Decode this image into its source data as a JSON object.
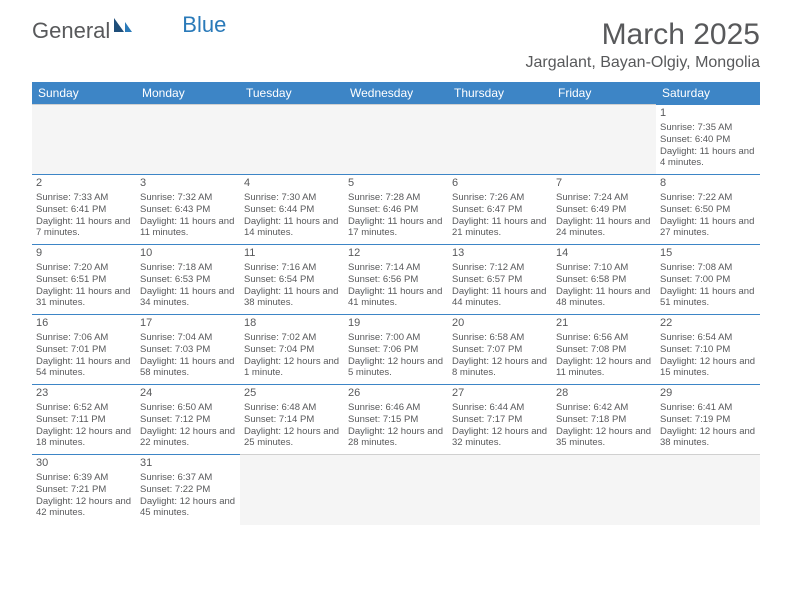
{
  "logo": {
    "part1": "General",
    "part2": "Blue"
  },
  "title": "March 2025",
  "location": "Jargalant, Bayan-Olgiy, Mongolia",
  "header_bg": "#3d85c6",
  "weekdays": [
    "Sunday",
    "Monday",
    "Tuesday",
    "Wednesday",
    "Thursday",
    "Friday",
    "Saturday"
  ],
  "first_weekday": 6,
  "days_in_month": 31,
  "days": {
    "1": {
      "sunrise": "7:35 AM",
      "sunset": "6:40 PM",
      "daylight": "11 hours and 4 minutes."
    },
    "2": {
      "sunrise": "7:33 AM",
      "sunset": "6:41 PM",
      "daylight": "11 hours and 7 minutes."
    },
    "3": {
      "sunrise": "7:32 AM",
      "sunset": "6:43 PM",
      "daylight": "11 hours and 11 minutes."
    },
    "4": {
      "sunrise": "7:30 AM",
      "sunset": "6:44 PM",
      "daylight": "11 hours and 14 minutes."
    },
    "5": {
      "sunrise": "7:28 AM",
      "sunset": "6:46 PM",
      "daylight": "11 hours and 17 minutes."
    },
    "6": {
      "sunrise": "7:26 AM",
      "sunset": "6:47 PM",
      "daylight": "11 hours and 21 minutes."
    },
    "7": {
      "sunrise": "7:24 AM",
      "sunset": "6:49 PM",
      "daylight": "11 hours and 24 minutes."
    },
    "8": {
      "sunrise": "7:22 AM",
      "sunset": "6:50 PM",
      "daylight": "11 hours and 27 minutes."
    },
    "9": {
      "sunrise": "7:20 AM",
      "sunset": "6:51 PM",
      "daylight": "11 hours and 31 minutes."
    },
    "10": {
      "sunrise": "7:18 AM",
      "sunset": "6:53 PM",
      "daylight": "11 hours and 34 minutes."
    },
    "11": {
      "sunrise": "7:16 AM",
      "sunset": "6:54 PM",
      "daylight": "11 hours and 38 minutes."
    },
    "12": {
      "sunrise": "7:14 AM",
      "sunset": "6:56 PM",
      "daylight": "11 hours and 41 minutes."
    },
    "13": {
      "sunrise": "7:12 AM",
      "sunset": "6:57 PM",
      "daylight": "11 hours and 44 minutes."
    },
    "14": {
      "sunrise": "7:10 AM",
      "sunset": "6:58 PM",
      "daylight": "11 hours and 48 minutes."
    },
    "15": {
      "sunrise": "7:08 AM",
      "sunset": "7:00 PM",
      "daylight": "11 hours and 51 minutes."
    },
    "16": {
      "sunrise": "7:06 AM",
      "sunset": "7:01 PM",
      "daylight": "11 hours and 54 minutes."
    },
    "17": {
      "sunrise": "7:04 AM",
      "sunset": "7:03 PM",
      "daylight": "11 hours and 58 minutes."
    },
    "18": {
      "sunrise": "7:02 AM",
      "sunset": "7:04 PM",
      "daylight": "12 hours and 1 minute."
    },
    "19": {
      "sunrise": "7:00 AM",
      "sunset": "7:06 PM",
      "daylight": "12 hours and 5 minutes."
    },
    "20": {
      "sunrise": "6:58 AM",
      "sunset": "7:07 PM",
      "daylight": "12 hours and 8 minutes."
    },
    "21": {
      "sunrise": "6:56 AM",
      "sunset": "7:08 PM",
      "daylight": "12 hours and 11 minutes."
    },
    "22": {
      "sunrise": "6:54 AM",
      "sunset": "7:10 PM",
      "daylight": "12 hours and 15 minutes."
    },
    "23": {
      "sunrise": "6:52 AM",
      "sunset": "7:11 PM",
      "daylight": "12 hours and 18 minutes."
    },
    "24": {
      "sunrise": "6:50 AM",
      "sunset": "7:12 PM",
      "daylight": "12 hours and 22 minutes."
    },
    "25": {
      "sunrise": "6:48 AM",
      "sunset": "7:14 PM",
      "daylight": "12 hours and 25 minutes."
    },
    "26": {
      "sunrise": "6:46 AM",
      "sunset": "7:15 PM",
      "daylight": "12 hours and 28 minutes."
    },
    "27": {
      "sunrise": "6:44 AM",
      "sunset": "7:17 PM",
      "daylight": "12 hours and 32 minutes."
    },
    "28": {
      "sunrise": "6:42 AM",
      "sunset": "7:18 PM",
      "daylight": "12 hours and 35 minutes."
    },
    "29": {
      "sunrise": "6:41 AM",
      "sunset": "7:19 PM",
      "daylight": "12 hours and 38 minutes."
    },
    "30": {
      "sunrise": "6:39 AM",
      "sunset": "7:21 PM",
      "daylight": "12 hours and 42 minutes."
    },
    "31": {
      "sunrise": "6:37 AM",
      "sunset": "7:22 PM",
      "daylight": "12 hours and 45 minutes."
    }
  }
}
